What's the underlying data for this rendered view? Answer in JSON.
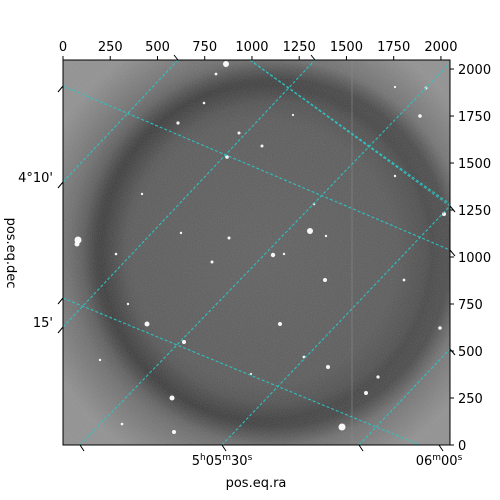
{
  "axes": {
    "xlabel": "pos.eq.ra",
    "ylabel": "pos.eq.dec",
    "top_ticks": [
      "0",
      "250",
      "500",
      "750",
      "1000",
      "1250",
      "1500",
      "1750",
      "2000"
    ],
    "top_tick_values": [
      0,
      250,
      500,
      750,
      1000,
      1250,
      1500,
      1750,
      2000
    ],
    "right_ticks": [
      "0",
      "250",
      "500",
      "750",
      "1000",
      "1250",
      "1500",
      "1750",
      "2000"
    ],
    "right_tick_values": [
      0,
      250,
      500,
      750,
      1000,
      1250,
      1500,
      1750,
      2000
    ],
    "ra_labels": [
      {
        "h": "5",
        "m": "05",
        "s": "30"
      },
      {
        "h": "",
        "m": "06",
        "s": "00"
      }
    ],
    "dec_labels": [
      "4°10'",
      "15'"
    ],
    "pixel_range": [
      0,
      2048
    ]
  },
  "image": {
    "description": "grayscale astronomical image with noise, vignetting ring and stars",
    "grid_color": "#2ec4c4",
    "background_colors": [
      "#3a3a3a",
      "#6a6a6a",
      "#9a9a9a"
    ]
  }
}
